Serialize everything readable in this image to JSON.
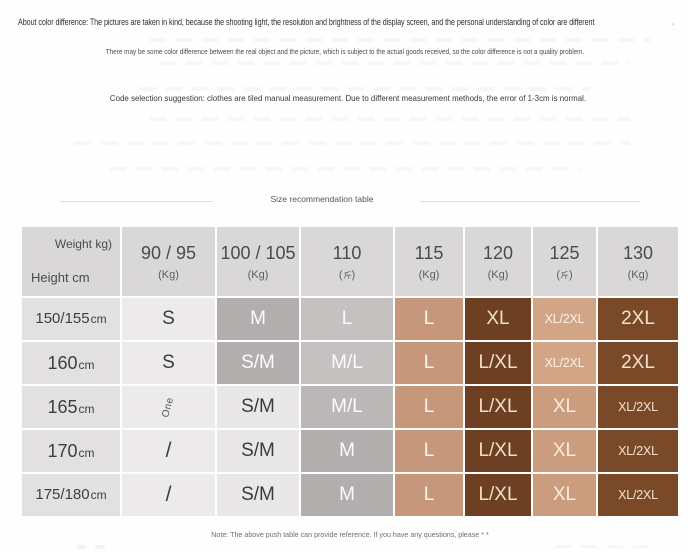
{
  "top_notes": {
    "line1": "About color difference: The pictures are taken in kind, because the shooting light, the resolution and brightness of the display screen, and the personal understanding of color are different",
    "stray_mark": "’",
    "line2": "There may be some color difference between the real object and the picture, which is subject to the actual goods received, so the color difference is not a quality problem.",
    "line3": "Code selection suggestion: clothes are tiled manual measurement. Due to different measurement methods, the error of 1-3cm is normal."
  },
  "section": {
    "title": "Size recommendation table"
  },
  "size_table": {
    "corner": {
      "weight": "Weight kg)",
      "height": "Height cm"
    },
    "columns": [
      {
        "label": "90 / 95",
        "unit": "(Kg)"
      },
      {
        "label": "100 / 105",
        "unit": "(Kg)"
      },
      {
        "label": "110",
        "unit": "(斤)"
      },
      {
        "label": "115",
        "unit": "(Kg)"
      },
      {
        "label": "120",
        "unit": "(Kg)"
      },
      {
        "label": "125",
        "unit": "(斤)"
      },
      {
        "label": "130",
        "unit": "(Kg)"
      }
    ],
    "rows": [
      {
        "height": "150/155",
        "unit": "cm",
        "cells": [
          {
            "t": "S",
            "s": "plainLight"
          },
          {
            "t": "M",
            "s": "grayDark"
          },
          {
            "t": "L",
            "s": "grayMid"
          },
          {
            "t": "L",
            "s": "tan"
          },
          {
            "t": "XL",
            "s": "brownDark"
          },
          {
            "t": "XL/2XL",
            "s": "tanLight",
            "small": true
          },
          {
            "t": "2XL",
            "s": "brown"
          }
        ]
      },
      {
        "height": "160",
        "unit": "cm",
        "cells": [
          {
            "t": "S",
            "s": "plainLight"
          },
          {
            "t": "S/M",
            "s": "grayDark"
          },
          {
            "t": "M/L",
            "s": "grayMid"
          },
          {
            "t": "L",
            "s": "tan"
          },
          {
            "t": "L/XL",
            "s": "brownDark"
          },
          {
            "t": "XL/2XL",
            "s": "tanLight",
            "small": true
          },
          {
            "t": "2XL",
            "s": "brown"
          }
        ]
      },
      {
        "height": "165",
        "unit": "cm",
        "cells": [
          {
            "t": "One",
            "s": "plainLight",
            "rot": true
          },
          {
            "t": "S/M",
            "s": "plain"
          },
          {
            "t": "M/L",
            "s": "grayMid2"
          },
          {
            "t": "L",
            "s": "tan"
          },
          {
            "t": "L/XL",
            "s": "brownDark"
          },
          {
            "t": "XL",
            "s": "tanLight2"
          },
          {
            "t": "XL/2XL",
            "s": "brown",
            "small": true
          }
        ]
      },
      {
        "height": "170",
        "unit": "cm",
        "cells": [
          {
            "t": "/",
            "s": "plainLight"
          },
          {
            "t": "S/M",
            "s": "plain"
          },
          {
            "t": "M",
            "s": "grayDark"
          },
          {
            "t": "L",
            "s": "tan"
          },
          {
            "t": "L/XL",
            "s": "brownDark"
          },
          {
            "t": "XL",
            "s": "tanLight2"
          },
          {
            "t": "XL/2XL",
            "s": "brown",
            "small": true
          }
        ]
      },
      {
        "height": "175/180",
        "unit": "cm",
        "cells": [
          {
            "t": "/",
            "s": "plainLight"
          },
          {
            "t": "S/M",
            "s": "plain"
          },
          {
            "t": "M",
            "s": "grayDark"
          },
          {
            "t": "L",
            "s": "tan"
          },
          {
            "t": "L/XL",
            "s": "brownDark"
          },
          {
            "t": "XL",
            "s": "tanLight2"
          },
          {
            "t": "XL/2XL",
            "s": "brown",
            "small": true
          }
        ]
      }
    ]
  },
  "footer_note": "Note: The above push table can provide reference. If you have any questions, please * *",
  "colors": {
    "header": {
      "bg": "#d9d7d7",
      "text": "#4b4b4b"
    },
    "heightCol": {
      "bg": "#e2e0e0",
      "text": "#3f3f3f"
    },
    "plainLight": {
      "bg": "#eceaea",
      "text": "#3c3c3c"
    },
    "plain": {
      "bg": "#e9e7e7",
      "text": "#3c3c3c"
    },
    "grayDark": {
      "bg": "#b3aeae",
      "text": "#fbfbfb"
    },
    "grayMid": {
      "bg": "#c5c1c1",
      "text": "#fbfbfb"
    },
    "grayMid2": {
      "bg": "#bcb7b7",
      "text": "#fbfbfb"
    },
    "tan": {
      "bg": "#c6977a",
      "text": "#fdf5ee"
    },
    "tanLight": {
      "bg": "#d3a587",
      "text": "#fbf1e8"
    },
    "tanLight2": {
      "bg": "#cb9c7e",
      "text": "#f8ecdf"
    },
    "brownDark": {
      "bg": "#6e4023",
      "text": "#f3dfc7"
    },
    "brown": {
      "bg": "#7a4a28",
      "text": "#f5e2cd"
    }
  }
}
